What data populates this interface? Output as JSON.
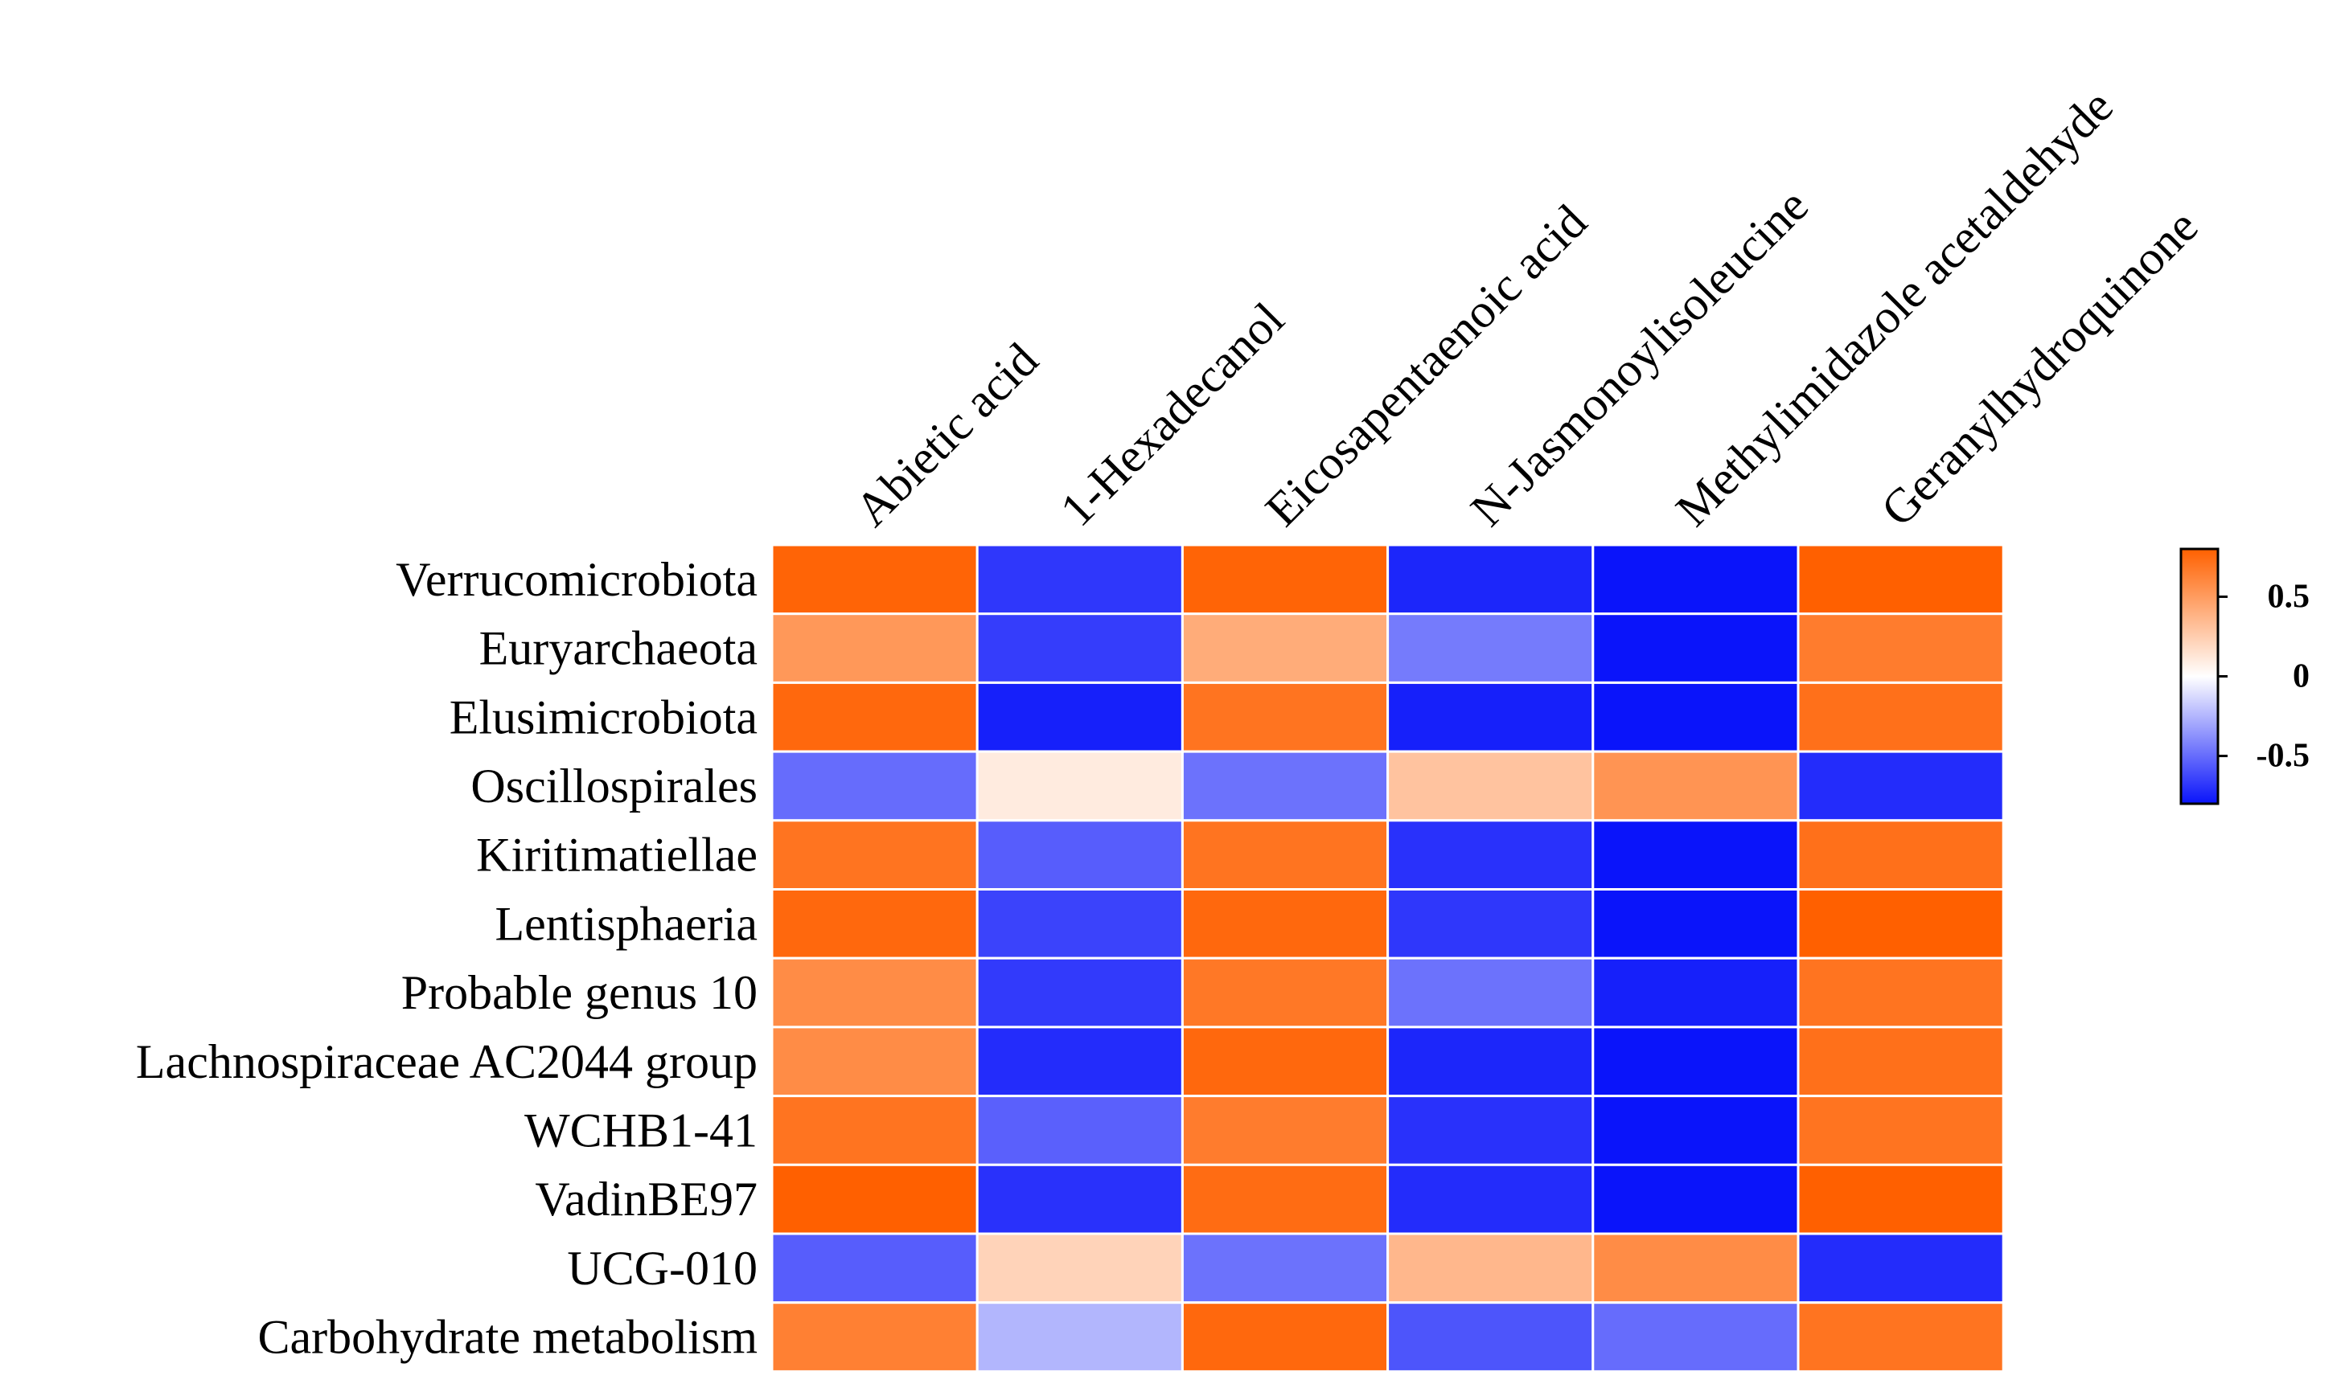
{
  "chart_data": {
    "type": "heatmap",
    "title": "",
    "xlabel": "",
    "ylabel": "",
    "columns": [
      "Abietic acid",
      "1-Hexadecanol",
      "Eicosapentaenoic acid",
      "N-Jasmonoylisoleucine",
      "Methylimidazole acetaldehyde",
      "Geranylhydroquinone"
    ],
    "rows": [
      "Verrucomicrobiota",
      "Euryarchaeota",
      "Elusimicrobiota",
      "Oscillospirales",
      "Kiritimatiellae",
      "Lentisphaeria",
      "Probable genus 10",
      "Lachnospiraceae AC2044 group",
      "WCHB1-41",
      "VadinBE97",
      "UCG-010",
      "Carbohydrate metabolism"
    ],
    "values": [
      [
        0.78,
        -0.68,
        0.78,
        -0.74,
        -0.86,
        0.8
      ],
      [
        0.52,
        -0.66,
        0.42,
        -0.45,
        -0.86,
        0.66
      ],
      [
        0.76,
        -0.76,
        0.7,
        -0.76,
        -0.82,
        0.72
      ],
      [
        -0.5,
        0.1,
        -0.48,
        0.3,
        0.54,
        -0.72
      ],
      [
        0.7,
        -0.55,
        0.7,
        -0.7,
        -0.88,
        0.72
      ],
      [
        0.76,
        -0.64,
        0.76,
        -0.68,
        -0.84,
        0.8
      ],
      [
        0.58,
        -0.67,
        0.68,
        -0.48,
        -0.76,
        0.7
      ],
      [
        0.58,
        -0.72,
        0.76,
        -0.74,
        -0.84,
        0.72
      ],
      [
        0.7,
        -0.54,
        0.66,
        -0.7,
        -0.88,
        0.7
      ],
      [
        0.8,
        -0.7,
        0.74,
        -0.72,
        -0.84,
        0.82
      ],
      [
        -0.55,
        0.22,
        -0.48,
        0.36,
        0.58,
        -0.72
      ],
      [
        0.64,
        -0.25,
        0.76,
        -0.58,
        -0.5,
        0.7
      ]
    ],
    "colorbar": {
      "range": [
        -0.8,
        0.8
      ],
      "ticks": [
        0.5,
        0,
        -0.5
      ],
      "tick_labels": [
        "0.5",
        "0",
        "-0.5"
      ],
      "low_color": "#0a14fa",
      "mid_color": "#ffffff",
      "high_color": "#ff6000"
    }
  }
}
